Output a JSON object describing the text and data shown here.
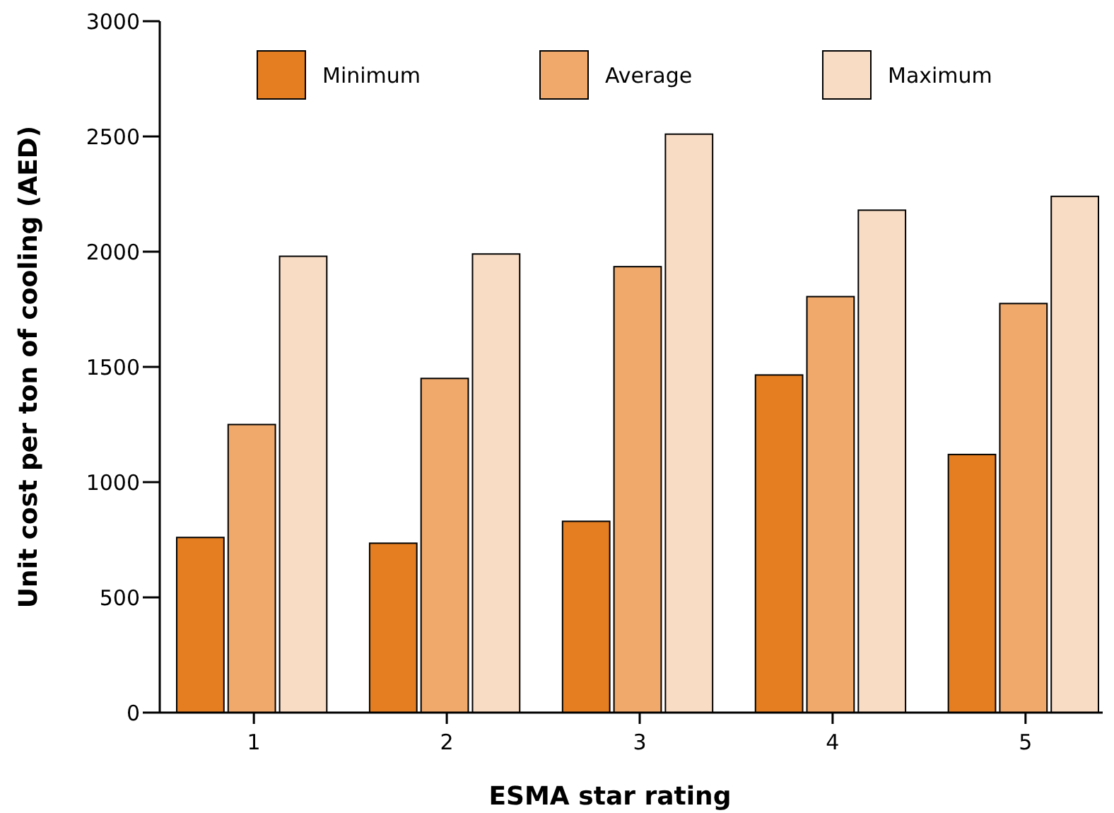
{
  "chart_data": {
    "type": "bar",
    "xlabel": "ESMA star rating",
    "ylabel": "Unit cost per ton of cooling (AED)",
    "categories": [
      "1",
      "2",
      "3",
      "4",
      "5"
    ],
    "series": [
      {
        "name": "Minimum",
        "color": "#e57e20",
        "values": [
          760,
          735,
          830,
          1465,
          1120
        ]
      },
      {
        "name": "Average",
        "color": "#f0a96b",
        "values": [
          1250,
          1450,
          1935,
          1805,
          1775
        ]
      },
      {
        "name": "Maximum",
        "color": "#f9dcc4",
        "values": [
          1980,
          1990,
          2510,
          2180,
          2240
        ]
      }
    ],
    "ylim": [
      0,
      3000
    ],
    "yticks": [
      0,
      500,
      1000,
      1500,
      2000,
      2500,
      3000
    ],
    "legend": "top"
  }
}
